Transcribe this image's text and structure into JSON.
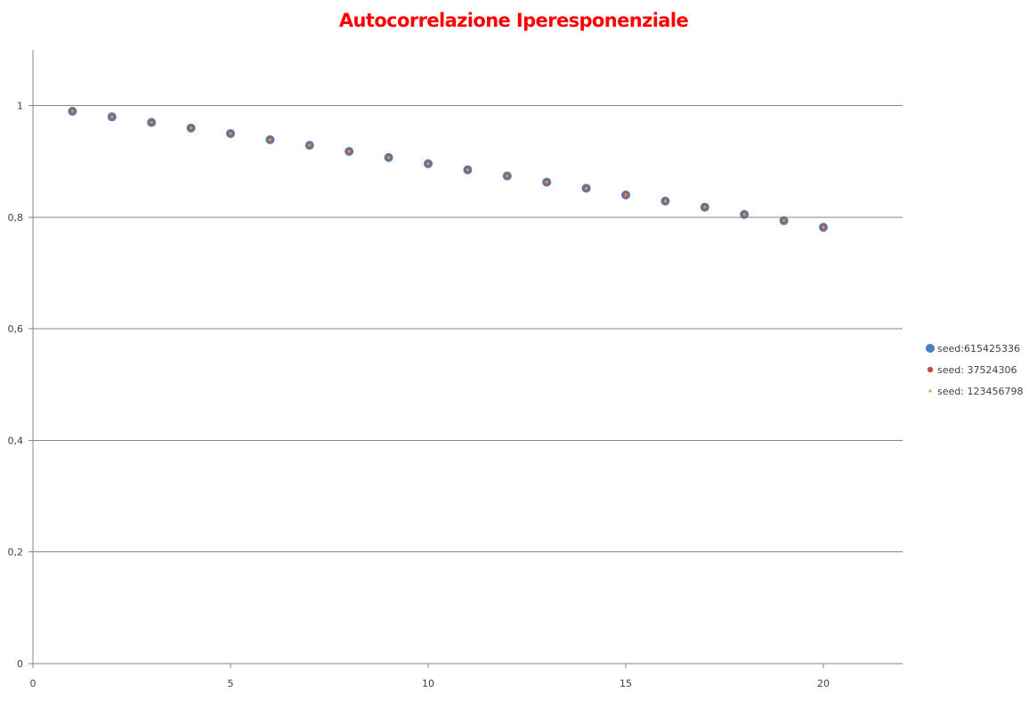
{
  "chart_data": {
    "type": "scatter",
    "title": "Autocorrelazione Iperesponenziale",
    "title_color": "#ff0000",
    "xlabel": "",
    "ylabel": "",
    "xlim": [
      0,
      22
    ],
    "ylim": [
      0,
      1.1
    ],
    "x_ticks": [
      0,
      5,
      10,
      15,
      20
    ],
    "x_tick_labels": [
      "0",
      "5",
      "10",
      "15",
      "20"
    ],
    "y_ticks": [
      0,
      0.2,
      0.4,
      0.6,
      0.8,
      1
    ],
    "y_tick_labels": [
      "0",
      "0,2",
      "0,4",
      "0,6",
      "0,8",
      "1"
    ],
    "grid": "horizontal",
    "legend_position": "right",
    "series": [
      {
        "name": "seed:615425336",
        "color": "#4a7ebb",
        "marker": "large-dot",
        "x": [
          1,
          2,
          3,
          4,
          5,
          6,
          7,
          8,
          9,
          10,
          11,
          12,
          13,
          14,
          15,
          16,
          17,
          18,
          19,
          20
        ],
        "y": [
          0.99,
          0.98,
          0.97,
          0.96,
          0.95,
          0.939,
          0.929,
          0.918,
          0.907,
          0.896,
          0.885,
          0.874,
          0.863,
          0.852,
          0.84,
          0.829,
          0.818,
          0.805,
          0.794,
          0.782
        ]
      },
      {
        "name": "seed: 37524306",
        "color": "#c0504d",
        "marker": "medium-dot",
        "x": [
          1,
          2,
          3,
          4,
          5,
          6,
          7,
          8,
          9,
          10,
          11,
          12,
          13,
          14,
          15,
          16,
          17,
          18,
          19,
          20
        ],
        "y": [
          0.99,
          0.98,
          0.97,
          0.96,
          0.95,
          0.939,
          0.929,
          0.918,
          0.907,
          0.896,
          0.885,
          0.874,
          0.863,
          0.852,
          0.84,
          0.829,
          0.818,
          0.805,
          0.794,
          0.782
        ]
      },
      {
        "name": "seed: 123456798",
        "color": "#9bbb59",
        "marker": "small-dot",
        "x": [
          1,
          2,
          3,
          4,
          5,
          6,
          7,
          8,
          9,
          10,
          11,
          12,
          13,
          14,
          15,
          16,
          17,
          18,
          19,
          20
        ],
        "y": [
          0.99,
          0.98,
          0.97,
          0.96,
          0.95,
          0.939,
          0.929,
          0.918,
          0.907,
          0.896,
          0.885,
          0.874,
          0.863,
          0.852,
          0.84,
          0.829,
          0.818,
          0.805,
          0.794,
          0.782
        ]
      }
    ]
  }
}
